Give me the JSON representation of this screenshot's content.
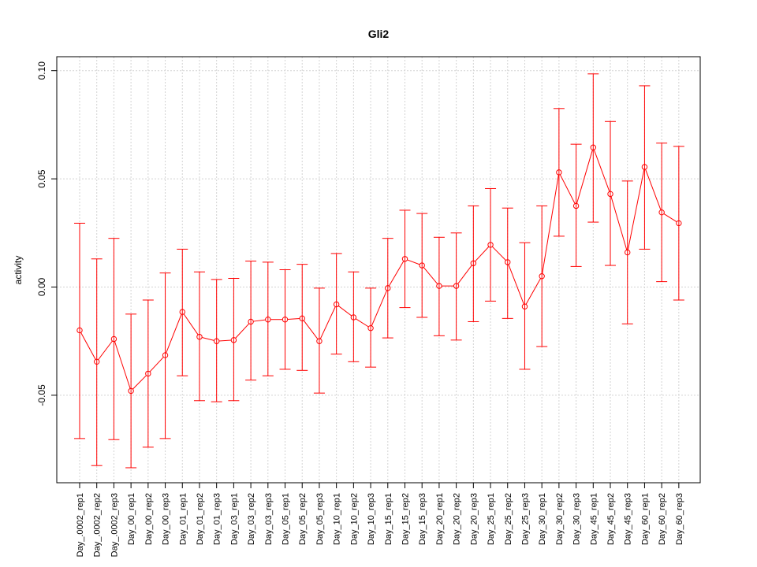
{
  "chart_data": {
    "type": "line",
    "title": "Gli2",
    "xlabel": "",
    "ylabel": "activity",
    "ylim": [
      -0.09,
      0.107
    ],
    "yticks": [
      "-0.05",
      "0.00",
      "0.05",
      "0.10"
    ],
    "ytick_values": [
      -0.05,
      0.0,
      0.05,
      0.1
    ],
    "grid": true,
    "color": "#ff0000",
    "categories": [
      "Day_0002_rep1",
      "Day_0002_rep2",
      "Day_0002_rep3",
      "Day_00_rep1",
      "Day_00_rep2",
      "Day_00_rep3",
      "Day_01_rep1",
      "Day_01_rep2",
      "Day_01_rep3",
      "Day_03_rep1",
      "Day_03_rep2",
      "Day_03_rep3",
      "Day_05_rep1",
      "Day_05_rep2",
      "Day_05_rep3",
      "Day_10_rep1",
      "Day_10_rep2",
      "Day_10_rep3",
      "Day_15_rep1",
      "Day_15_rep2",
      "Day_15_rep3",
      "Day_20_rep1",
      "Day_20_rep2",
      "Day_20_rep3",
      "Day_25_rep1",
      "Day_25_rep2",
      "Day_25_rep3",
      "Day_30_rep1",
      "Day_30_rep2",
      "Day_30_rep3",
      "Day_45_rep1",
      "Day_45_rep2",
      "Day_45_rep3",
      "Day_60_rep1",
      "Day_60_rep2",
      "Day_60_rep3"
    ],
    "tick_labels": [
      "Day_.0002_rep1",
      "Day_.0002_rep2",
      "Day_.0002_rep3",
      "Day_00_rep1",
      "Day_00_rep2",
      "Day_00_rep3",
      "Day_01_rep1",
      "Day_01_rep2",
      "Day_01_rep3",
      "Day_03_rep1",
      "Day_03_rep2",
      "Day_03_rep3",
      "Day_05_rep1",
      "Day_05_rep2",
      "Day_05_rep3",
      "Day_10_rep1",
      "Day_10_rep2",
      "Day_10_rep3",
      "Day_15_rep1",
      "Day_15_rep2",
      "Day_15_rep3",
      "Day_20_rep1",
      "Day_20_rep2",
      "Day_20_rep3",
      "Day_25_rep1",
      "Day_25_rep2",
      "Day_25_rep3",
      "Day_30_rep1",
      "Day_30_rep2",
      "Day_30_rep3",
      "Day_45_rep1",
      "Day_45_rep2",
      "Day_45_rep3",
      "Day_60_rep1",
      "Day_60_rep2",
      "Day_60_rep3"
    ],
    "series": [
      {
        "values": [
          -0.02,
          -0.0345,
          -0.024,
          -0.048,
          -0.04,
          -0.0315,
          -0.0115,
          -0.023,
          -0.025,
          -0.0245,
          -0.016,
          -0.015,
          -0.015,
          -0.0145,
          -0.025,
          -0.008,
          -0.014,
          -0.019,
          -0.0005,
          0.013,
          0.01,
          0.0005,
          0.0005,
          0.011,
          0.0195,
          0.0115,
          -0.009,
          0.005,
          0.053,
          0.0375,
          0.0645,
          0.043,
          0.016,
          0.0555,
          0.0345,
          0.0295
        ],
        "err_low": [
          -0.07,
          -0.0825,
          -0.0705,
          -0.0835,
          -0.074,
          -0.07,
          -0.041,
          -0.0525,
          -0.053,
          -0.0525,
          -0.043,
          -0.041,
          -0.038,
          -0.0385,
          -0.049,
          -0.031,
          -0.0345,
          -0.037,
          -0.0235,
          -0.0095,
          -0.014,
          -0.0225,
          -0.0245,
          -0.016,
          -0.0065,
          -0.0145,
          -0.038,
          -0.0275,
          0.0235,
          0.0095,
          0.03,
          0.01,
          -0.017,
          0.0175,
          0.0025,
          -0.006
        ],
        "err_high": [
          0.0295,
          0.013,
          0.0225,
          -0.0125,
          -0.006,
          0.0065,
          0.0175,
          0.007,
          0.0035,
          0.004,
          0.012,
          0.0115,
          0.008,
          0.0105,
          -0.0005,
          0.0155,
          0.007,
          -0.0005,
          0.0225,
          0.0355,
          0.034,
          0.023,
          0.025,
          0.0375,
          0.0455,
          0.0365,
          0.0205,
          0.0375,
          0.0825,
          0.066,
          0.0985,
          0.0765,
          0.049,
          0.093,
          0.0665,
          0.065
        ]
      }
    ]
  }
}
